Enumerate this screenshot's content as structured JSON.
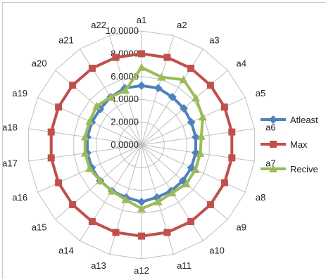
{
  "chart_data": {
    "type": "radar",
    "title": "",
    "categories": [
      "a1",
      "a2",
      "a3",
      "a4",
      "a5",
      "a6",
      "a7",
      "a8",
      "a9",
      "a10",
      "a11",
      "a12",
      "a13",
      "a14",
      "a15",
      "a16",
      "a17",
      "a18",
      "a19",
      "a20",
      "a21",
      "a22"
    ],
    "rlim": [
      0,
      10
    ],
    "tick_values": [
      0,
      2,
      4,
      6,
      8,
      10
    ],
    "tick_labels": [
      "0.0000",
      "2.0000",
      "4.0000",
      "6.0000",
      "8.0000",
      "10.0000"
    ],
    "grid": true,
    "legend": "right",
    "series": [
      {
        "name": "Atleast",
        "color": "#4f81bd",
        "marker": "diamond",
        "values": [
          5.2,
          5.2,
          5.0,
          4.9,
          4.8,
          4.8,
          4.8,
          4.8,
          4.8,
          4.8,
          4.8,
          5.0,
          4.8,
          4.8,
          4.8,
          4.8,
          4.8,
          4.8,
          4.8,
          4.8,
          5.0,
          5.2
        ]
      },
      {
        "name": "Max",
        "color": "#c0504d",
        "marker": "square",
        "values": [
          8.0,
          8.0,
          8.0,
          8.0,
          8.0,
          8.0,
          8.0,
          8.0,
          8.0,
          8.0,
          8.0,
          8.0,
          8.0,
          8.0,
          8.0,
          8.0,
          8.0,
          8.0,
          8.0,
          8.0,
          8.0,
          8.0
        ]
      },
      {
        "name": "Recive",
        "color": "#9bbb59",
        "marker": "triangle",
        "values": [
          6.8,
          6.2,
          6.8,
          6.3,
          5.9,
          5.3,
          5.2,
          5.2,
          5.2,
          5.0,
          5.2,
          5.6,
          5.0,
          4.8,
          4.8,
          5.0,
          5.0,
          5.0,
          5.0,
          5.2,
          5.0,
          5.0
        ]
      }
    ]
  }
}
